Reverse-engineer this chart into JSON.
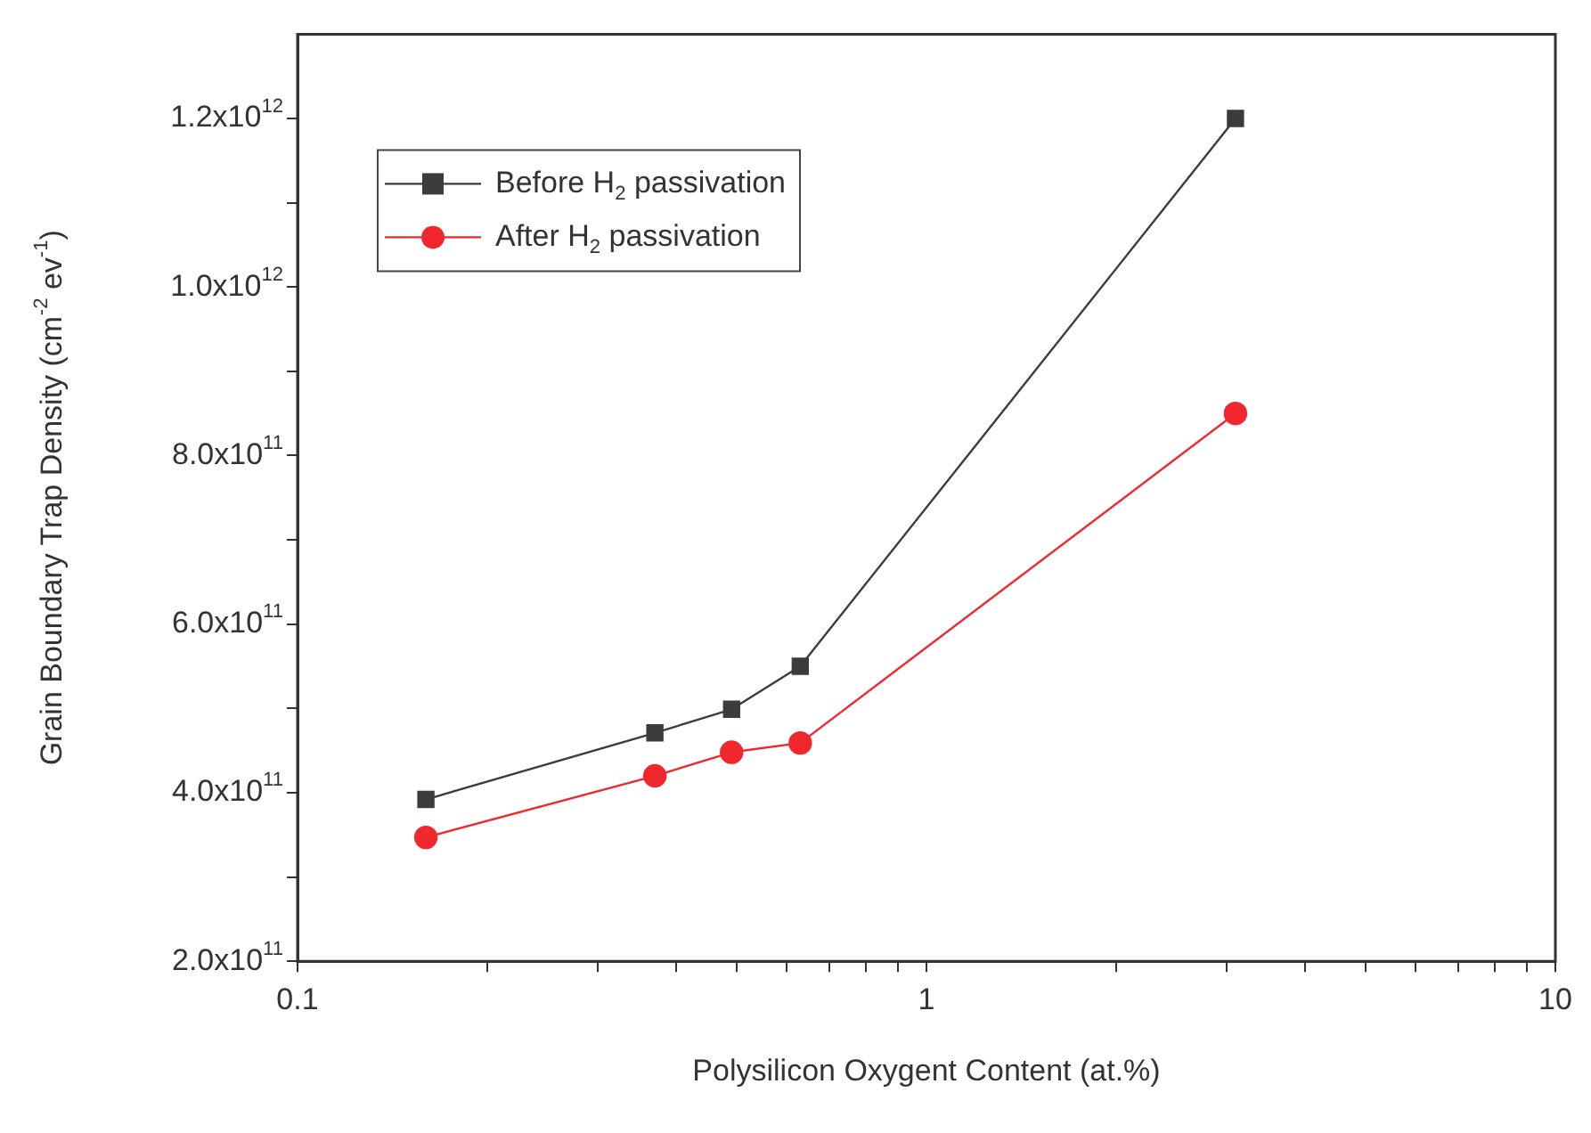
{
  "chart_data": {
    "type": "line",
    "xlabel": "Polysilicon Oxygent Content (at.%)",
    "ylabel": "Grain Boundary Trap Density (cm$^{-2}$ ev$^{-1}$)",
    "log": "x",
    "legend": "top left",
    "marker": "square",
    "line_style": "solid",
    "grid": false,
    "x": [
      0.16,
      0.37,
      0.49,
      0.63,
      3.1
    ],
    "series": [
      {
        "name": "Before H$_{2}$ passivation",
        "color": "#3a3d3c",
        "values": [
          392000000000.0,
          471000000000.0,
          499000000000.0,
          550000000000.0,
          1200000000000.0
        ]
      },
      {
        "name": "After H$_{2}$ passivation",
        "color": "#f0282d",
        "marker": "circle",
        "values": [
          347000000000.0,
          420000000000.0,
          448000000000.0,
          459000000000.0,
          850000000000.0
        ]
      }
    ],
    "xlim": [
      0.1,
      10
    ],
    "xticks": [
      0.1,
      {
        "value": 0.2,
        "label": null
      },
      {
        "value": 0.3,
        "label": null
      },
      {
        "value": 0.4,
        "label": null
      },
      {
        "value": 0.5,
        "label": null
      },
      {
        "value": 0.6,
        "label": null
      },
      {
        "value": 0.7,
        "label": null
      },
      {
        "value": 0.8,
        "label": null
      },
      {
        "value": 0.9,
        "label": null
      },
      1,
      {
        "value": 2,
        "label": null
      },
      {
        "value": 3,
        "label": null
      },
      {
        "value": 4,
        "label": null
      },
      {
        "value": 5,
        "label": null
      },
      {
        "value": 6,
        "label": null
      },
      {
        "value": 7,
        "label": null
      },
      {
        "value": 8,
        "label": null
      },
      {
        "value": 9,
        "label": null
      },
      10
    ],
    "ylim": [
      200000000000.0,
      1300000000000.0
    ],
    "yticks": [
      {
        "value": 200000000000.0,
        "label": "2.0x10$^{11}$"
      },
      {
        "value": 300000000000.0,
        "label": null
      },
      {
        "value": 400000000000.0,
        "label": "4.0x10$^{11}$"
      },
      {
        "value": 500000000000.0,
        "label": null
      },
      {
        "value": 600000000000.0,
        "label": "6.0x10$^{11}$"
      },
      {
        "value": 700000000000.0,
        "label": null
      },
      {
        "value": 800000000000.0,
        "label": "8.0x10$^{11}$"
      },
      {
        "value": 900000000000.0,
        "label": null
      },
      {
        "value": 1000000000000.0,
        "label": "1.0x10$^{12}$"
      },
      {
        "value": 1100000000000.0,
        "label": null
      },
      {
        "value": 1200000000000.0,
        "label": "1.2x10$^{12}$"
      }
    ]
  }
}
